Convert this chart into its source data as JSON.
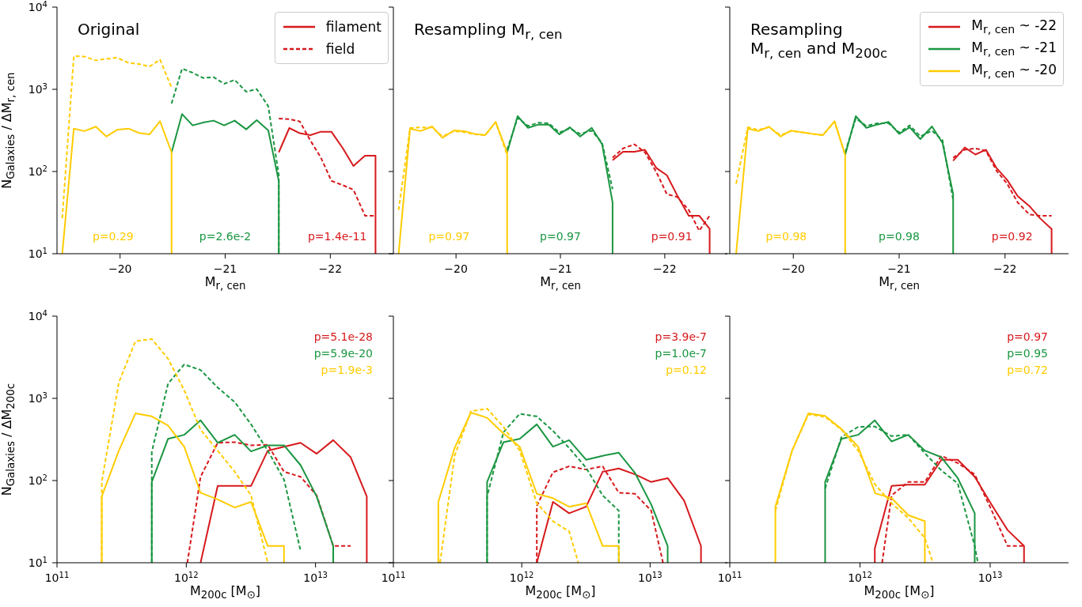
{
  "chart_data": [
    {
      "type": "line",
      "title": "Original",
      "xlabel": "M$_{r, cen}$",
      "ylabel": "N$_{Galaxies}$ / ΔM$_{r, cen}$",
      "log": "y",
      "xlim": [
        -19.4,
        -22.6
      ],
      "xticks": [
        {
          "value": -20,
          "label": "−20"
        },
        {
          "value": -21,
          "label": "−21"
        },
        {
          "value": -22,
          "label": "−22"
        }
      ],
      "ylim": [
        10,
        10000
      ],
      "yticks": [
        {
          "value": 10,
          "label": "10$^{1}$"
        },
        {
          "value": 100,
          "label": "10$^{2}$"
        },
        {
          "value": 1000,
          "label": "10$^{3}$"
        },
        {
          "value": 10000,
          "label": "10$^{4}$"
        }
      ],
      "legend": "top right",
      "annotations": [
        "p=0.29",
        "p=2.6e-2",
        "p=1.4e-11"
      ],
      "series": [
        {
          "name": "filament",
          "color": "#d7191c",
          "line_style": "solid",
          "x": [
            -21.51,
            -21.61,
            -21.71,
            -21.81,
            -21.91,
            -22.01,
            -22.12,
            -22.22,
            -22.33,
            -22.43,
            -22.43
          ],
          "values": [
            171,
            338,
            292,
            277,
            305,
            305,
            191,
            117,
            156,
            156,
            10
          ]
        },
        {
          "name": "field",
          "color": "#d7191c",
          "line_style": "dashed",
          "x": [
            -21.51,
            -21.61,
            -21.71,
            -21.81,
            -21.91,
            -22.01,
            -22.12,
            -22.22,
            -22.33,
            -22.43
          ],
          "values": [
            441,
            434,
            406,
            239,
            148,
            77,
            68,
            60,
            29,
            29
          ]
        },
        {
          "color": "#1a9641",
          "line_style": "solid",
          "x": [
            -20.49,
            -20.59,
            -20.69,
            -20.79,
            -20.89,
            -20.99,
            -21.09,
            -21.2,
            -21.3,
            -21.41,
            -21.51,
            -21.51
          ],
          "values": [
            171,
            500,
            364,
            394,
            416,
            364,
            416,
            326,
            422,
            316,
            76,
            10
          ]
        },
        {
          "color": "#1a9641",
          "line_style": "dashed",
          "x": [
            -20.49,
            -20.59,
            -20.69,
            -20.79,
            -20.89,
            -20.99,
            -21.09,
            -21.2,
            -21.3,
            -21.41,
            -21.51,
            -21.51
          ],
          "values": [
            671,
            1790,
            1592,
            1374,
            1403,
            1168,
            1303,
            935,
            1007,
            623,
            90,
            10
          ]
        },
        {
          "color": "#ffcc00",
          "line_style": "solid",
          "x": [
            -19.45,
            -19.56,
            -19.66,
            -19.77,
            -19.87,
            -19.97,
            -20.08,
            -20.18,
            -20.28,
            -20.38,
            -20.49,
            -20.49
          ],
          "values": [
            10,
            333,
            310,
            351,
            267,
            321,
            333,
            294,
            283,
            409,
            171,
            10
          ]
        },
        {
          "color": "#ffcc00",
          "line_style": "dashed",
          "x": [
            -19.45,
            -19.56,
            -19.66,
            -19.77,
            -19.87,
            -19.97,
            -20.08,
            -20.18,
            -20.28,
            -20.38,
            -20.49
          ],
          "values": [
            27,
            2535,
            2500,
            2250,
            2350,
            2420,
            2100,
            2030,
            1890,
            2300,
            1045
          ]
        }
      ]
    },
    {
      "type": "line",
      "title": "Resampling M$_{r, cen}$",
      "xlabel": "M$_{r, cen}$",
      "log": "y",
      "tick_labels": "x",
      "xlim": [
        -19.4,
        -22.6
      ],
      "xticks": [
        {
          "value": -20,
          "label": "−20"
        },
        {
          "value": -21,
          "label": "−21"
        },
        {
          "value": -22,
          "label": "−22"
        }
      ],
      "ylim": [
        10,
        10000
      ],
      "yticks": [
        {
          "value": 10,
          "label": null
        },
        {
          "value": 100,
          "label": null
        },
        {
          "value": 1000,
          "label": null
        },
        {
          "value": 10000,
          "label": null
        }
      ],
      "annotations": [
        "p=0.97",
        "p=0.97",
        "p=0.91"
      ],
      "series": [
        {
          "color": "#d7191c",
          "line_style": "solid",
          "x": [
            -21.5,
            -21.6,
            -21.71,
            -21.81,
            -21.92,
            -22.02,
            -22.12,
            -22.23,
            -22.33,
            -22.43,
            -22.43
          ],
          "values": [
            137,
            174,
            174,
            184,
            110,
            90,
            51,
            29,
            29,
            20,
            10
          ]
        },
        {
          "color": "#d7191c",
          "line_style": "dashed",
          "x": [
            -21.5,
            -21.6,
            -21.71,
            -21.81,
            -21.92,
            -22.02,
            -22.12,
            -22.23,
            -22.33,
            -22.43
          ],
          "values": [
            147,
            191,
            214,
            171,
            98,
            53,
            49,
            34,
            19,
            29
          ]
        },
        {
          "color": "#1a9641",
          "line_style": "solid",
          "x": [
            -20.49,
            -20.59,
            -20.69,
            -20.79,
            -20.89,
            -20.99,
            -21.09,
            -21.19,
            -21.3,
            -21.4,
            -21.5,
            -21.5
          ],
          "values": [
            171,
            471,
            340,
            372,
            372,
            283,
            345,
            267,
            340,
            214,
            42,
            10
          ]
        },
        {
          "color": "#1a9641",
          "line_style": "dashed",
          "x": [
            -20.49,
            -20.59,
            -20.69,
            -20.79,
            -20.89,
            -20.99,
            -21.09,
            -21.19,
            -21.3,
            -21.4,
            -21.5
          ],
          "values": [
            184,
            448,
            358,
            392,
            385,
            298,
            333,
            287,
            314,
            222,
            61
          ]
        },
        {
          "color": "#ffcc00",
          "line_style": "solid",
          "x": [
            -19.45,
            -19.56,
            -19.66,
            -19.77,
            -19.87,
            -19.98,
            -20.08,
            -20.18,
            -20.28,
            -20.38,
            -20.49,
            -20.49
          ],
          "values": [
            10,
            333,
            310,
            353,
            257,
            316,
            310,
            287,
            277,
            401,
            171,
            10
          ]
        },
        {
          "color": "#ffcc00",
          "line_style": "dashed",
          "x": [
            -19.45,
            -19.56,
            -19.66,
            -19.77,
            -19.87,
            -19.98,
            -20.08,
            -20.18,
            -20.28,
            -20.38,
            -20.49
          ],
          "values": [
            34,
            338,
            344,
            344,
            267,
            310,
            300,
            283,
            277,
            401,
            159
          ]
        }
      ]
    },
    {
      "type": "line",
      "title": "Resampling\nM$_{r, cen}$ and M$_{200c}$",
      "xlabel": "M$_{r, cen}$",
      "log": "y",
      "tick_labels": "x",
      "xlim": [
        -19.4,
        -22.6
      ],
      "xticks": [
        {
          "value": -20,
          "label": "−20"
        },
        {
          "value": -21,
          "label": "−21"
        },
        {
          "value": -22,
          "label": "−22"
        }
      ],
      "ylim": [
        10,
        10000
      ],
      "yticks": [
        {
          "value": 10,
          "label": null
        },
        {
          "value": 100,
          "label": null
        },
        {
          "value": 1000,
          "label": null
        },
        {
          "value": 10000,
          "label": null
        }
      ],
      "legend": "top right",
      "annotations": [
        "p=0.98",
        "p=0.98",
        "p=0.92"
      ],
      "series": [
        {
          "name": "M$_{r, cen}$ ~ -22",
          "color": "#d7191c",
          "line_style": "solid",
          "x": [
            -21.51,
            -21.62,
            -21.72,
            -21.82,
            -21.92,
            -22.02,
            -22.12,
            -22.23,
            -22.33,
            -22.44,
            -22.44
          ],
          "values": [
            135,
            196,
            161,
            184,
            110,
            79,
            50,
            38,
            27,
            20,
            10
          ]
        },
        {
          "color": "#d7191c",
          "line_style": "dashed",
          "x": [
            -21.51,
            -21.62,
            -21.72,
            -21.82,
            -21.92,
            -22.02,
            -22.12,
            -22.23,
            -22.33,
            -22.44
          ],
          "values": [
            147,
            184,
            191,
            178,
            102,
            71,
            42,
            30,
            29,
            29
          ]
        },
        {
          "name": "M$_{r, cen}$ ~ -21",
          "color": "#1a9641",
          "line_style": "solid",
          "x": [
            -20.49,
            -20.59,
            -20.69,
            -20.79,
            -20.9,
            -21.0,
            -21.1,
            -21.2,
            -21.31,
            -21.41,
            -21.51,
            -21.51
          ],
          "values": [
            159,
            471,
            340,
            372,
            401,
            287,
            345,
            248,
            353,
            222,
            53,
            10
          ]
        },
        {
          "color": "#1a9641",
          "line_style": "dashed",
          "x": [
            -20.49,
            -20.59,
            -20.69,
            -20.79,
            -20.9,
            -21.0,
            -21.1,
            -21.2,
            -21.31,
            -21.41,
            -21.51
          ],
          "values": [
            171,
            441,
            358,
            385,
            385,
            298,
            364,
            267,
            314,
            239,
            45
          ]
        },
        {
          "name": "M$_{r, cen}$ ~ -20",
          "color": "#ffcc00",
          "line_style": "solid",
          "x": [
            -19.46,
            -19.57,
            -19.67,
            -19.77,
            -19.88,
            -19.98,
            -20.08,
            -20.18,
            -20.28,
            -20.39,
            -20.49,
            -20.49
          ],
          "values": [
            10,
            333,
            310,
            351,
            267,
            315,
            300,
            287,
            277,
            409,
            159,
            10
          ]
        },
        {
          "color": "#ffcc00",
          "line_style": "dashed",
          "x": [
            -19.46,
            -19.57,
            -19.67,
            -19.77,
            -19.88,
            -19.98,
            -20.08,
            -20.18,
            -20.28,
            -20.39,
            -20.49
          ],
          "values": [
            71,
            345,
            321,
            345,
            277,
            310,
            300,
            287,
            277,
            401,
            159
          ]
        }
      ]
    },
    {
      "type": "line",
      "xlabel": "M$_{200c}$ [M$_{⊙}$]",
      "ylabel": "N$_{Galaxies}$ / ΔM$_{200c}$",
      "log": "xy",
      "xlim": [
        100000000000.0,
        40000000000000.0
      ],
      "xticks": [
        {
          "value": 100000000000.0,
          "label": "10$^{11}$"
        },
        {
          "value": 1000000000000.0,
          "label": "10$^{12}$"
        },
        {
          "value": 10000000000000.0,
          "label": "10$^{13}$"
        }
      ],
      "ylim": [
        10,
        10000
      ],
      "yticks": [
        {
          "value": 10,
          "label": "10$^{1}$"
        },
        {
          "value": 100,
          "label": "10$^{2}$"
        },
        {
          "value": 1000,
          "label": "10$^{3}$"
        },
        {
          "value": 10000,
          "label": "10$^{4}$"
        }
      ],
      "annotations": [
        "p=5.1e-28",
        "p=5.9e-20",
        "p=1.9e-3"
      ],
      "series": [
        {
          "color": "#d7191c",
          "line_style": "solid",
          "x": [
            1290000000000.0,
            1750000000000.0,
            2370000000000.0,
            3170000000000.0,
            4270000000000.0,
            5700000000000.0,
            7660000000000.0,
            10200000000000.0,
            13700000000000.0,
            18700000000000.0,
            24900000000000.0,
            24900000000000.0
          ],
          "values": [
            10,
            86,
            86,
            86,
            231,
            258,
            288,
            212,
            310,
            192,
            64,
            10
          ]
        },
        {
          "color": "#d7191c",
          "line_style": "dashed",
          "x": [
            1020000000000.0,
            1290000000000.0,
            1750000000000.0,
            2370000000000.0,
            3170000000000.0,
            4270000000000.0,
            5700000000000.0,
            7660000000000.0,
            10200000000000.0,
            13700000000000.0,
            18700000000000.0
          ],
          "values": [
            10,
            111,
            288,
            293,
            268,
            272,
            128,
            111,
            66,
            16,
            16
          ]
        },
        {
          "color": "#1a9641",
          "line_style": "solid",
          "x": [
            541000000000.0,
            541000000000.0,
            723000000000.0,
            964000000000.0,
            1290000000000.0,
            1750000000000.0,
            2370000000000.0,
            3170000000000.0,
            4270000000000.0,
            5700000000000.0,
            7660000000000.0,
            10200000000000.0,
            13700000000000.0,
            13700000000000.0
          ],
          "values": [
            10,
            96,
            322,
            360,
            540,
            288,
            360,
            226,
            268,
            268,
            154,
            64,
            16,
            10
          ]
        },
        {
          "color": "#1a9641",
          "line_style": "dashed",
          "x": [
            541000000000.0,
            541000000000.0,
            723000000000.0,
            964000000000.0,
            1290000000000.0,
            1750000000000.0,
            2370000000000.0,
            3170000000000.0,
            4270000000000.0,
            5700000000000.0,
            7660000000000.0
          ],
          "values": [
            10,
            223,
            1510,
            2583,
            2213,
            1352,
            902,
            483,
            231,
            103,
            14
          ]
        },
        {
          "color": "#ffcc00",
          "line_style": "solid",
          "x": [
            222000000000.0,
            222000000000.0,
            301000000000.0,
            405000000000.0,
            541000000000.0,
            723000000000.0,
            964000000000.0,
            1290000000000.0,
            1750000000000.0,
            2370000000000.0,
            3170000000000.0,
            4270000000000.0,
            5700000000000.0,
            5700000000000.0
          ],
          "values": [
            10,
            64,
            231,
            658,
            603,
            466,
            258,
            71,
            59,
            47,
            55,
            16,
            16,
            10
          ]
        },
        {
          "color": "#ffcc00",
          "line_style": "dashed",
          "x": [
            222000000000.0,
            222000000000.0,
            301000000000.0,
            405000000000.0,
            541000000000.0,
            723000000000.0,
            964000000000.0,
            1290000000000.0,
            1750000000000.0,
            2370000000000.0,
            3170000000000.0,
            4270000000000.0
          ],
          "values": [
            10,
            96,
            1567,
            4966,
            5270,
            3034,
            1256,
            417,
            231,
            128,
            66,
            10
          ]
        }
      ]
    },
    {
      "type": "line",
      "xlabel": "M$_{200c}$ [M$_{⊙}$]",
      "log": "xy",
      "tick_labels": "x",
      "xlim": [
        100000000000.0,
        40000000000000.0
      ],
      "xticks": [
        {
          "value": 100000000000.0,
          "label": "10$^{11}$"
        },
        {
          "value": 1000000000000.0,
          "label": "10$^{12}$"
        },
        {
          "value": 10000000000000.0,
          "label": "10$^{13}$"
        }
      ],
      "ylim": [
        10,
        10000
      ],
      "yticks": [
        {
          "value": 10,
          "label": null
        },
        {
          "value": 100,
          "label": null
        },
        {
          "value": 1000,
          "label": null
        },
        {
          "value": 10000,
          "label": null
        }
      ],
      "annotations": [
        "p=3.9e-7",
        "p=1.0e-7",
        "p=0.12"
      ],
      "series": [
        {
          "color": "#d7191c",
          "line_style": "solid",
          "x": [
            1310000000000.0,
            1750000000000.0,
            2340000000000.0,
            3170000000000.0,
            4270000000000.0,
            5700000000000.0,
            7620000000000.0,
            10200000000000.0,
            13700000000000.0,
            18400000000000.0,
            24900000000000.0,
            24900000000000.0
          ],
          "values": [
            10,
            55,
            40,
            48,
            128,
            140,
            119,
            96,
            107,
            57,
            16,
            10
          ]
        },
        {
          "color": "#d7191c",
          "line_style": "dashed",
          "x": [
            1310000000000.0,
            1310000000000.0,
            1750000000000.0,
            2340000000000.0,
            3170000000000.0,
            4270000000000.0,
            5700000000000.0,
            7620000000000.0,
            10200000000000.0,
            12600000000000.0
          ],
          "values": [
            10,
            49,
            126,
            149,
            136,
            149,
            71,
            69,
            43,
            10
          ]
        },
        {
          "color": "#1a9641",
          "line_style": "solid",
          "x": [
            537000000000.0,
            537000000000.0,
            721000000000.0,
            964000000000.0,
            1310000000000.0,
            1750000000000.0,
            2340000000000.0,
            3170000000000.0,
            4270000000000.0,
            5700000000000.0,
            7620000000000.0,
            10200000000000.0,
            13700000000000.0,
            13700000000000.0
          ],
          "values": [
            10,
            96,
            293,
            322,
            483,
            258,
            310,
            179,
            200,
            218,
            124,
            51,
            16,
            10
          ]
        },
        {
          "color": "#1a9641",
          "line_style": "dashed",
          "x": [
            537000000000.0,
            537000000000.0,
            721000000000.0,
            964000000000.0,
            1310000000000.0,
            1750000000000.0,
            2340000000000.0,
            3170000000000.0,
            4270000000000.0,
            5700000000000.0,
            5700000000000.0
          ],
          "values": [
            10,
            64,
            387,
            648,
            603,
            402,
            249,
            143,
            66,
            43,
            10
          ]
        },
        {
          "color": "#ffcc00",
          "line_style": "solid",
          "x": [
            224000000000.0,
            224000000000.0,
            300000000000.0,
            402000000000.0,
            537000000000.0,
            721000000000.0,
            964000000000.0,
            1310000000000.0,
            1750000000000.0,
            2340000000000.0,
            3170000000000.0,
            4270000000000.0,
            5700000000000.0,
            5700000000000.0
          ],
          "values": [
            10,
            55,
            249,
            671,
            580,
            373,
            258,
            69,
            61,
            48,
            53,
            16,
            16,
            10
          ]
        },
        {
          "color": "#ffcc00",
          "line_style": "dashed",
          "x": [
            231000000000.0,
            300000000000.0,
            402000000000.0,
            537000000000.0,
            721000000000.0,
            964000000000.0,
            1310000000000.0,
            1750000000000.0,
            2340000000000.0,
            2760000000000.0
          ],
          "values": [
            10,
            200,
            697,
            750,
            449,
            231,
            53,
            32,
            24,
            10
          ]
        }
      ]
    },
    {
      "type": "line",
      "xlabel": "M$_{200c}$ [M$_{⊙}$]",
      "log": "xy",
      "tick_labels": "x",
      "xlim": [
        100000000000.0,
        40000000000000.0
      ],
      "xticks": [
        {
          "value": 100000000000.0,
          "label": "10$^{11}$"
        },
        {
          "value": 1000000000000.0,
          "label": "10$^{12}$"
        },
        {
          "value": 10000000000000.0,
          "label": "10$^{13}$"
        }
      ],
      "ylim": [
        10,
        10000
      ],
      "yticks": [
        {
          "value": 10,
          "label": null
        },
        {
          "value": 100,
          "label": null
        },
        {
          "value": 1000,
          "label": null
        },
        {
          "value": 10000,
          "label": null
        }
      ],
      "annotations": [
        "p=0.97",
        "p=0.95",
        "p=0.72"
      ],
      "series": [
        {
          "color": "#d7191c",
          "line_style": "solid",
          "x": [
            1300000000000.0,
            1300000000000.0,
            1750000000000.0,
            2350000000000.0,
            3150000000000.0,
            4220000000000.0,
            5640000000000.0,
            7610000000000.0,
            10100000000000.0,
            13600000000000.0,
            18200000000000.0,
            18200000000000.0
          ],
          "values": [
            10,
            15,
            86,
            89,
            89,
            179,
            179,
            111,
            53,
            25,
            16,
            10
          ]
        },
        {
          "color": "#d7191c",
          "line_style": "dashed",
          "x": [
            1480000000000.0,
            1750000000000.0,
            2350000000000.0,
            3150000000000.0,
            4220000000000.0,
            5640000000000.0,
            7610000000000.0,
            10100000000000.0,
            13600000000000.0,
            18200000000000.0
          ],
          "values": [
            10,
            66,
            96,
            96,
            200,
            163,
            119,
            46,
            16,
            16
          ]
        },
        {
          "color": "#1a9641",
          "line_style": "solid",
          "x": [
            540000000000.0,
            540000000000.0,
            721000000000.0,
            968000000000.0,
            1300000000000.0,
            1750000000000.0,
            2350000000000.0,
            3150000000000.0,
            4220000000000.0,
            5640000000000.0,
            7610000000000.0,
            7610000000000.0
          ],
          "values": [
            10,
            96,
            322,
            360,
            540,
            299,
            360,
            231,
            192,
            107,
            40,
            10
          ]
        },
        {
          "color": "#1a9641",
          "line_style": "dashed",
          "x": [
            540000000000.0,
            721000000000.0,
            968000000000.0,
            1300000000000.0,
            1750000000000.0,
            2350000000000.0,
            3150000000000.0,
            4220000000000.0,
            5640000000000.0,
            7610000000000.0,
            8050000000000.0
          ],
          "values": [
            80,
            339,
            449,
            455,
            347,
            360,
            215,
            133,
            92,
            16,
            10
          ]
        },
        {
          "color": "#ffcc00",
          "line_style": "solid",
          "x": [
            224000000000.0,
            224000000000.0,
            301000000000.0,
            402000000000.0,
            540000000000.0,
            721000000000.0,
            968000000000.0,
            1310000000000.0,
            1750000000000.0,
            2350000000000.0,
            3150000000000.0,
            3150000000000.0
          ],
          "values": [
            10,
            48,
            231,
            658,
            611,
            423,
            258,
            70,
            61,
            38,
            32,
            10
          ]
        },
        {
          "color": "#ffcc00",
          "line_style": "dashed",
          "x": [
            224000000000.0,
            301000000000.0,
            402000000000.0,
            540000000000.0,
            721000000000.0,
            968000000000.0,
            1310000000000.0,
            1750000000000.0,
            2350000000000.0,
            3150000000000.0,
            3630000000000.0
          ],
          "values": [
            43,
            231,
            638,
            593,
            417,
            231,
            89,
            53,
            35,
            20,
            10
          ]
        }
      ]
    }
  ]
}
